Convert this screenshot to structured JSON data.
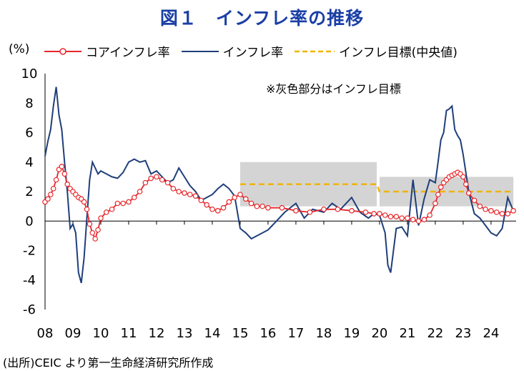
{
  "title": "図１　インフレ率の推移",
  "unit": "(%)",
  "source": "(出所)CEIC より第一生命経済研究所作成",
  "colors": {
    "core": "#e8262a",
    "headline": "#1f3f7a",
    "target": "#f0b400",
    "band": "#d4d4d4"
  },
  "chart_data": {
    "type": "line",
    "title": "図１　インフレ率の推移",
    "ylabel": "(%)",
    "xlabel": "",
    "ylim": [
      -6,
      10
    ],
    "xlim": [
      2008.0,
      2024.9
    ],
    "yticks": [
      -6,
      -4,
      -2,
      0,
      2,
      4,
      6,
      8,
      10
    ],
    "x_tick_positions": [
      2008,
      2009,
      2010,
      2011,
      2012,
      2013,
      2014,
      2015,
      2016,
      2017,
      2018,
      2019,
      2020,
      2021,
      2022,
      2023,
      2024
    ],
    "x_tick_labels": [
      "08",
      "09",
      "10",
      "11",
      "12",
      "13",
      "14",
      "15",
      "16",
      "17",
      "18",
      "19",
      "20",
      "21",
      "22",
      "23",
      "24"
    ],
    "annotation": "※灰色部分はインフレ目標",
    "legend_position": "top",
    "series": [
      {
        "name": "コアインフレ率",
        "style": "line-with-circle-markers",
        "x": [
          2008.0,
          2008.1,
          2008.2,
          2008.3,
          2008.4,
          2008.5,
          2008.6,
          2008.7,
          2008.8,
          2008.9,
          2009.0,
          2009.1,
          2009.2,
          2009.3,
          2009.4,
          2009.5,
          2009.6,
          2009.7,
          2009.8,
          2009.9,
          2010.0,
          2010.2,
          2010.4,
          2010.6,
          2010.8,
          2011.0,
          2011.2,
          2011.4,
          2011.6,
          2011.8,
          2012.0,
          2012.2,
          2012.4,
          2012.6,
          2012.8,
          2013.0,
          2013.2,
          2013.4,
          2013.6,
          2013.8,
          2014.0,
          2014.2,
          2014.4,
          2014.6,
          2014.8,
          2015.0,
          2015.2,
          2015.4,
          2015.6,
          2015.8,
          2016.0,
          2016.5,
          2017.0,
          2017.5,
          2018.0,
          2018.5,
          2019.0,
          2019.5,
          2019.8,
          2020.0,
          2020.2,
          2020.4,
          2020.6,
          2020.8,
          2021.0,
          2021.2,
          2021.4,
          2021.6,
          2021.8,
          2022.0,
          2022.1,
          2022.2,
          2022.3,
          2022.4,
          2022.5,
          2022.6,
          2022.7,
          2022.8,
          2022.9,
          2023.0,
          2023.1,
          2023.2,
          2023.4,
          2023.6,
          2023.8,
          2024.0,
          2024.2,
          2024.4,
          2024.6,
          2024.8
        ],
        "values": [
          1.3,
          1.5,
          1.8,
          2.2,
          2.8,
          3.5,
          3.7,
          3.2,
          2.5,
          2.2,
          2.0,
          1.8,
          1.6,
          1.5,
          1.3,
          0.8,
          -0.2,
          -0.8,
          -1.2,
          -0.6,
          0.2,
          0.6,
          0.8,
          1.2,
          1.2,
          1.3,
          1.6,
          2.0,
          2.6,
          2.9,
          3.0,
          2.8,
          2.6,
          2.2,
          2.0,
          1.9,
          1.8,
          1.7,
          1.4,
          1.1,
          0.8,
          0.7,
          0.9,
          1.3,
          1.6,
          1.8,
          1.5,
          1.2,
          1.0,
          1.0,
          0.9,
          0.9,
          0.7,
          0.6,
          0.8,
          0.8,
          0.7,
          0.6,
          0.5,
          0.5,
          0.4,
          0.3,
          0.3,
          0.2,
          0.2,
          0.1,
          0.0,
          0.1,
          0.4,
          1.2,
          1.8,
          2.3,
          2.6,
          2.8,
          3.0,
          3.1,
          3.2,
          3.3,
          3.2,
          3.0,
          2.5,
          1.9,
          1.4,
          1.0,
          0.8,
          0.7,
          0.6,
          0.5,
          0.5,
          0.7
        ]
      },
      {
        "name": "インフレ率",
        "style": "line",
        "x": [
          2008.0,
          2008.1,
          2008.2,
          2008.3,
          2008.4,
          2008.5,
          2008.6,
          2008.7,
          2008.8,
          2008.9,
          2009.0,
          2009.1,
          2009.2,
          2009.3,
          2009.4,
          2009.5,
          2009.6,
          2009.7,
          2009.8,
          2009.9,
          2010.0,
          2010.2,
          2010.4,
          2010.6,
          2010.8,
          2011.0,
          2011.2,
          2011.4,
          2011.6,
          2011.8,
          2012.0,
          2012.2,
          2012.4,
          2012.6,
          2012.8,
          2013.0,
          2013.2,
          2013.4,
          2013.6,
          2013.8,
          2014.0,
          2014.2,
          2014.4,
          2014.6,
          2014.8,
          2015.0,
          2015.2,
          2015.4,
          2015.6,
          2015.8,
          2016.0,
          2016.3,
          2016.6,
          2017.0,
          2017.3,
          2017.6,
          2018.0,
          2018.3,
          2018.6,
          2019.0,
          2019.3,
          2019.6,
          2019.8,
          2020.0,
          2020.2,
          2020.3,
          2020.4,
          2020.6,
          2020.8,
          2021.0,
          2021.2,
          2021.4,
          2021.6,
          2021.8,
          2022.0,
          2022.1,
          2022.2,
          2022.3,
          2022.4,
          2022.5,
          2022.6,
          2022.7,
          2022.8,
          2022.9,
          2023.0,
          2023.2,
          2023.4,
          2023.6,
          2023.8,
          2024.0,
          2024.2,
          2024.4,
          2024.6,
          2024.8
        ],
        "values": [
          4.4,
          5.4,
          6.2,
          7.8,
          9.1,
          7.2,
          6.2,
          4.0,
          2.0,
          -0.5,
          -0.2,
          -0.8,
          -3.5,
          -4.2,
          -2.5,
          0.2,
          2.8,
          4.0,
          3.6,
          3.2,
          3.4,
          3.2,
          3.0,
          2.9,
          3.3,
          4.0,
          4.2,
          4.0,
          4.1,
          3.2,
          3.4,
          3.0,
          2.6,
          2.8,
          3.6,
          3.0,
          2.4,
          2.0,
          1.4,
          1.6,
          1.8,
          2.2,
          2.5,
          2.2,
          1.7,
          -0.5,
          -0.8,
          -1.2,
          -1.0,
          -0.8,
          -0.6,
          0.0,
          0.6,
          1.2,
          0.2,
          0.8,
          0.6,
          1.2,
          0.8,
          1.6,
          0.6,
          0.2,
          0.5,
          0.4,
          -0.8,
          -3.0,
          -3.5,
          -0.5,
          -0.4,
          -1.0,
          2.8,
          -0.3,
          1.5,
          2.8,
          2.6,
          4.0,
          5.5,
          6.0,
          7.5,
          7.6,
          7.8,
          6.2,
          5.8,
          5.5,
          4.5,
          2.0,
          0.5,
          0.2,
          -0.3,
          -0.8,
          -1.0,
          -0.5,
          1.6,
          0.7
        ]
      },
      {
        "name": "インフレ目標(中央値)",
        "style": "dashed",
        "x": [
          2015.0,
          2019.9,
          2020.0,
          2024.8
        ],
        "values": [
          2.5,
          2.5,
          2.0,
          2.0
        ]
      }
    ],
    "target_band": {
      "label": "インフレ目標",
      "segments": [
        {
          "x": [
            2015.0,
            2019.9
          ],
          "y": [
            1.0,
            4.0
          ]
        },
        {
          "x": [
            2020.0,
            2024.8
          ],
          "y": [
            1.0,
            3.0
          ]
        }
      ]
    }
  }
}
